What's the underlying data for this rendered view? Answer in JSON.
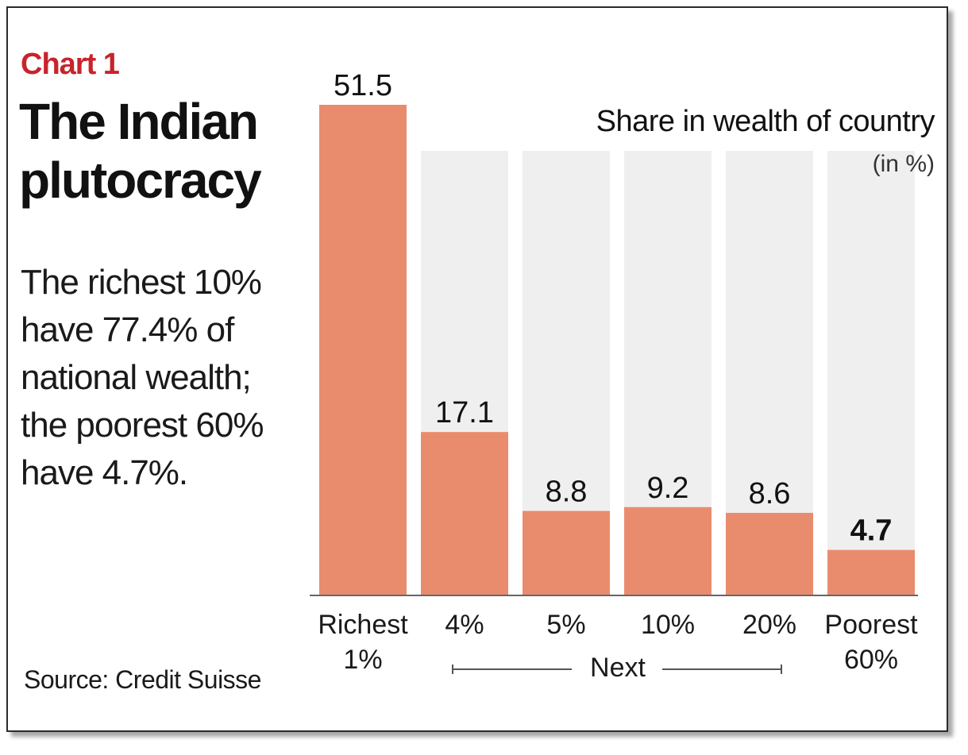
{
  "header": {
    "kicker": "Chart 1",
    "title": "The Indian plutocracy",
    "subtitle": "The richest 10% have 77.4% of national wealth; the poorest 60% have 4.7%.",
    "source": "Source: Credit Suisse"
  },
  "legend": {
    "title": "Share in wealth of country",
    "unit": "(in %)"
  },
  "group_label": "Next",
  "colors": {
    "bar": "#e98c6e",
    "background_stripe": "#efefef",
    "axis": "#666666",
    "accent_red": "#c8232c"
  },
  "chart_data": {
    "type": "bar",
    "title": "The Indian plutocracy",
    "categories": [
      [
        "Richest",
        "1%"
      ],
      [
        "4%"
      ],
      [
        "5%"
      ],
      [
        "10%"
      ],
      [
        "20%"
      ],
      [
        "Poorest",
        "60%"
      ]
    ],
    "values": [
      51.5,
      17.1,
      8.8,
      9.2,
      8.6,
      4.7
    ],
    "value_labels": [
      "51.5",
      "17.1",
      "8.8",
      "9.2",
      "8.6",
      "4.7"
    ],
    "highlighted_index": 5,
    "ylabel": "Share in wealth of country (in %)",
    "ylim": [
      0,
      51.5
    ],
    "grid": false,
    "legend_position": "top-right"
  }
}
